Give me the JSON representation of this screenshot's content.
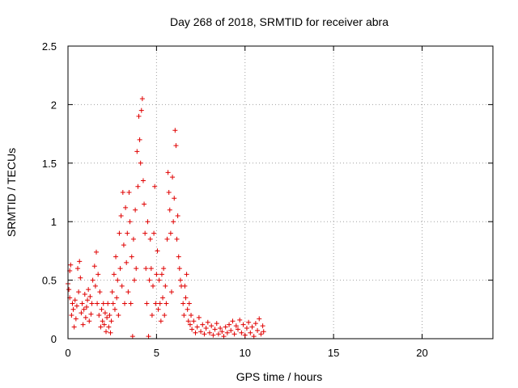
{
  "chart_data": {
    "type": "scatter",
    "title": "Day 268 of 2018, SRMTID for receiver abra",
    "xlabel": "GPS time / hours",
    "ylabel": "SRMTID / TECUs",
    "xlim": [
      0,
      24
    ],
    "ylim": [
      0,
      2.5
    ],
    "xticks": [
      0,
      5,
      10,
      15,
      20
    ],
    "xtick_labels": [
      "0",
      "5",
      "10",
      "15",
      "20"
    ],
    "yticks": [
      0,
      0.5,
      1,
      1.5,
      2,
      2.5
    ],
    "ytick_labels": [
      "0",
      "0.5",
      "1",
      "1.5",
      "2",
      "2.5"
    ],
    "grid": true,
    "marker": "+",
    "series_color": "#e00000",
    "series": [
      {
        "name": "SRMTID",
        "points": [
          [
            0.0,
            0.47
          ],
          [
            0.05,
            0.42
          ],
          [
            0.1,
            0.58
          ],
          [
            0.1,
            0.35
          ],
          [
            0.15,
            0.63
          ],
          [
            0.2,
            0.2
          ],
          [
            0.25,
            0.3
          ],
          [
            0.3,
            0.25
          ],
          [
            0.35,
            0.1
          ],
          [
            0.4,
            0.33
          ],
          [
            0.45,
            0.17
          ],
          [
            0.5,
            0.28
          ],
          [
            0.55,
            0.6
          ],
          [
            0.6,
            0.4
          ],
          [
            0.65,
            0.66
          ],
          [
            0.7,
            0.52
          ],
          [
            0.75,
            0.22
          ],
          [
            0.8,
            0.3
          ],
          [
            0.85,
            0.12
          ],
          [
            0.9,
            0.25
          ],
          [
            0.95,
            0.38
          ],
          [
            1.0,
            0.18
          ],
          [
            1.05,
            0.27
          ],
          [
            1.1,
            0.33
          ],
          [
            1.15,
            0.42
          ],
          [
            1.2,
            0.15
          ],
          [
            1.25,
            0.36
          ],
          [
            1.3,
            0.21
          ],
          [
            1.35,
            0.3
          ],
          [
            1.4,
            0.5
          ],
          [
            1.5,
            0.62
          ],
          [
            1.55,
            0.45
          ],
          [
            1.6,
            0.74
          ],
          [
            1.65,
            0.3
          ],
          [
            1.7,
            0.55
          ],
          [
            1.75,
            0.2
          ],
          [
            1.8,
            0.4
          ],
          [
            1.85,
            0.1
          ],
          [
            1.9,
            0.25
          ],
          [
            1.95,
            0.15
          ],
          [
            2.0,
            0.3
          ],
          [
            2.05,
            0.12
          ],
          [
            2.1,
            0.22
          ],
          [
            2.15,
            0.06
          ],
          [
            2.2,
            0.18
          ],
          [
            2.25,
            0.3
          ],
          [
            2.3,
            0.1
          ],
          [
            2.35,
            0.2
          ],
          [
            2.4,
            0.05
          ],
          [
            2.45,
            0.15
          ],
          [
            2.5,
            0.4
          ],
          [
            2.55,
            0.3
          ],
          [
            2.6,
            0.55
          ],
          [
            2.65,
            0.25
          ],
          [
            2.7,
            0.7
          ],
          [
            2.75,
            0.35
          ],
          [
            2.8,
            0.5
          ],
          [
            2.85,
            0.2
          ],
          [
            2.9,
            0.9
          ],
          [
            2.95,
            0.6
          ],
          [
            3.0,
            1.05
          ],
          [
            3.05,
            0.45
          ],
          [
            3.1,
            1.25
          ],
          [
            3.15,
            0.8
          ],
          [
            3.2,
            0.3
          ],
          [
            3.25,
            1.12
          ],
          [
            3.3,
            0.65
          ],
          [
            3.35,
            0.9
          ],
          [
            3.4,
            0.4
          ],
          [
            3.45,
            1.25
          ],
          [
            3.5,
            1.0
          ],
          [
            3.55,
            0.3
          ],
          [
            3.6,
            0.7
          ],
          [
            3.65,
            0.02
          ],
          [
            3.7,
            0.85
          ],
          [
            3.75,
            0.5
          ],
          [
            3.8,
            1.1
          ],
          [
            3.85,
            0.6
          ],
          [
            3.9,
            1.6
          ],
          [
            3.95,
            1.3
          ],
          [
            4.0,
            1.9
          ],
          [
            4.05,
            1.7
          ],
          [
            4.1,
            1.5
          ],
          [
            4.15,
            1.95
          ],
          [
            4.2,
            2.05
          ],
          [
            4.25,
            1.35
          ],
          [
            4.3,
            1.15
          ],
          [
            4.35,
            0.9
          ],
          [
            4.4,
            0.6
          ],
          [
            4.45,
            0.3
          ],
          [
            4.5,
            1.0
          ],
          [
            4.55,
            0.02
          ],
          [
            4.6,
            0.5
          ],
          [
            4.65,
            0.85
          ],
          [
            4.7,
            0.6
          ],
          [
            4.75,
            0.2
          ],
          [
            4.8,
            0.45
          ],
          [
            4.85,
            0.9
          ],
          [
            4.9,
            1.3
          ],
          [
            4.95,
            0.3
          ],
          [
            5.0,
            0.55
          ],
          [
            5.05,
            0.75
          ],
          [
            5.1,
            0.25
          ],
          [
            5.15,
            0.5
          ],
          [
            5.2,
            0.3
          ],
          [
            5.25,
            0.15
          ],
          [
            5.3,
            0.55
          ],
          [
            5.35,
            0.35
          ],
          [
            5.4,
            0.6
          ],
          [
            5.45,
            0.2
          ],
          [
            5.5,
            0.45
          ],
          [
            5.55,
            0.3
          ],
          [
            5.6,
            0.85
          ],
          [
            5.65,
            1.42
          ],
          [
            5.7,
            1.25
          ],
          [
            5.75,
            1.1
          ],
          [
            5.8,
            0.9
          ],
          [
            5.85,
            0.4
          ],
          [
            5.9,
            1.38
          ],
          [
            5.95,
            1.0
          ],
          [
            6.0,
            1.2
          ],
          [
            6.05,
            1.78
          ],
          [
            6.1,
            1.65
          ],
          [
            6.15,
            0.85
          ],
          [
            6.2,
            1.05
          ],
          [
            6.25,
            0.7
          ],
          [
            6.3,
            0.6
          ],
          [
            6.35,
            0.5
          ],
          [
            6.4,
            0.45
          ],
          [
            6.5,
            0.3
          ],
          [
            6.55,
            0.2
          ],
          [
            6.6,
            0.45
          ],
          [
            6.65,
            0.35
          ],
          [
            6.7,
            0.55
          ],
          [
            6.75,
            0.25
          ],
          [
            6.8,
            0.15
          ],
          [
            6.85,
            0.3
          ],
          [
            6.9,
            0.12
          ],
          [
            6.95,
            0.2
          ],
          [
            7.0,
            0.08
          ],
          [
            7.1,
            0.15
          ],
          [
            7.2,
            0.05
          ],
          [
            7.3,
            0.1
          ],
          [
            7.4,
            0.18
          ],
          [
            7.5,
            0.06
          ],
          [
            7.6,
            0.12
          ],
          [
            7.7,
            0.04
          ],
          [
            7.8,
            0.09
          ],
          [
            7.9,
            0.14
          ],
          [
            8.0,
            0.05
          ],
          [
            8.1,
            0.11
          ],
          [
            8.2,
            0.03
          ],
          [
            8.3,
            0.08
          ],
          [
            8.4,
            0.13
          ],
          [
            8.5,
            0.04
          ],
          [
            8.6,
            0.09
          ],
          [
            8.7,
            0.06
          ],
          [
            8.8,
            0.02
          ],
          [
            8.9,
            0.1
          ],
          [
            9.0,
            0.05
          ],
          [
            9.1,
            0.12
          ],
          [
            9.2,
            0.07
          ],
          [
            9.3,
            0.15
          ],
          [
            9.4,
            0.04
          ],
          [
            9.5,
            0.11
          ],
          [
            9.6,
            0.08
          ],
          [
            9.7,
            0.16
          ],
          [
            9.8,
            0.05
          ],
          [
            9.9,
            0.12
          ],
          [
            10.0,
            0.03
          ],
          [
            10.1,
            0.09
          ],
          [
            10.2,
            0.14
          ],
          [
            10.3,
            0.05
          ],
          [
            10.4,
            0.1
          ],
          [
            10.5,
            0.02
          ],
          [
            10.6,
            0.13
          ],
          [
            10.7,
            0.07
          ],
          [
            10.8,
            0.17
          ],
          [
            10.9,
            0.04
          ],
          [
            11.0,
            0.11
          ],
          [
            11.05,
            0.06
          ]
        ]
      }
    ]
  }
}
